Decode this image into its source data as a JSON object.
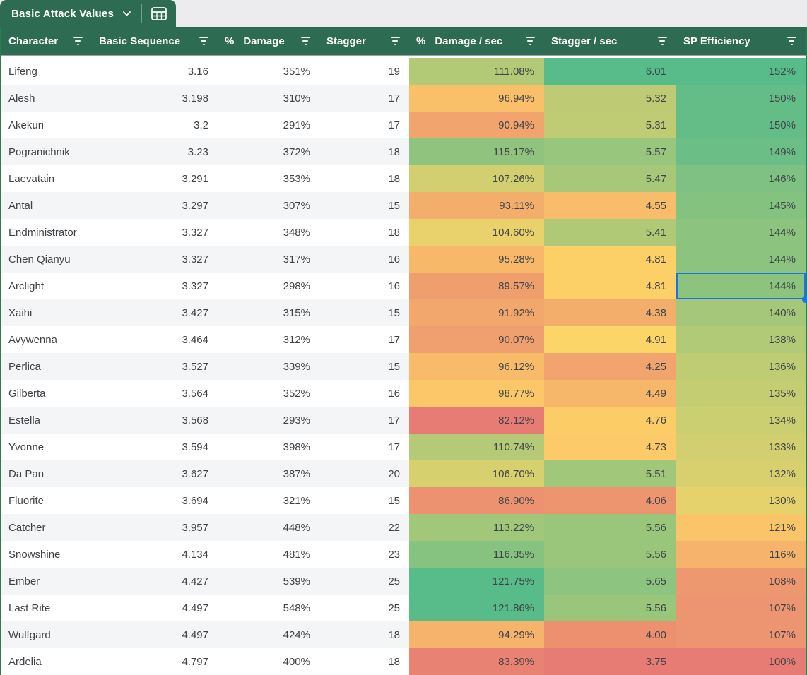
{
  "sheet_tab": {
    "label": "Basic Attack Values"
  },
  "icons": {
    "tab_chevron": "chevron-down",
    "tab_table": "table-grid",
    "column_filter": "filter-lines"
  },
  "theme": {
    "header_bg": "#2d6b53",
    "frame_border": "#2e7d4f",
    "row_alt_bg": "#f3f5f6",
    "selection_blue": "#1a73e8",
    "heat_min_color": "#e67c73",
    "heat_mid_color": "#ffd666",
    "heat_max_color": "#57bb8a"
  },
  "table": {
    "columns": [
      {
        "id": "character",
        "prefix": "",
        "label": "Character"
      },
      {
        "id": "basic_sequence",
        "prefix": "",
        "label": "Basic Sequence"
      },
      {
        "id": "damage_pct",
        "prefix": "%",
        "label": "Damage"
      },
      {
        "id": "stagger",
        "prefix": "",
        "label": "Stagger"
      },
      {
        "id": "damage_per_sec",
        "prefix": "%",
        "label": "Damage / sec"
      },
      {
        "id": "stagger_per_sec",
        "prefix": "",
        "label": "Stagger / sec"
      },
      {
        "id": "sp_efficiency",
        "prefix": "",
        "label": "SP Efficiency"
      }
    ],
    "heat_column_ids": [
      "damage_per_sec",
      "stagger_per_sec",
      "sp_efficiency"
    ],
    "rows": [
      {
        "character": "Lifeng",
        "basic_sequence": 3.16,
        "damage_pct": 351,
        "stagger": 19,
        "damage_per_sec": 111.08,
        "stagger_per_sec": 6.01,
        "sp_efficiency": 152
      },
      {
        "character": "Alesh",
        "basic_sequence": 3.198,
        "damage_pct": 310,
        "stagger": 17,
        "damage_per_sec": 96.94,
        "stagger_per_sec": 5.32,
        "sp_efficiency": 150
      },
      {
        "character": "Akekuri",
        "basic_sequence": 3.2,
        "damage_pct": 291,
        "stagger": 17,
        "damage_per_sec": 90.94,
        "stagger_per_sec": 5.31,
        "sp_efficiency": 150
      },
      {
        "character": "Pogranichnik",
        "basic_sequence": 3.23,
        "damage_pct": 372,
        "stagger": 18,
        "damage_per_sec": 115.17,
        "stagger_per_sec": 5.57,
        "sp_efficiency": 149
      },
      {
        "character": "Laevatain",
        "basic_sequence": 3.291,
        "damage_pct": 353,
        "stagger": 18,
        "damage_per_sec": 107.26,
        "stagger_per_sec": 5.47,
        "sp_efficiency": 146
      },
      {
        "character": "Antal",
        "basic_sequence": 3.297,
        "damage_pct": 307,
        "stagger": 15,
        "damage_per_sec": 93.11,
        "stagger_per_sec": 4.55,
        "sp_efficiency": 145
      },
      {
        "character": "Endministrator",
        "basic_sequence": 3.327,
        "damage_pct": 348,
        "stagger": 18,
        "damage_per_sec": 104.6,
        "stagger_per_sec": 5.41,
        "sp_efficiency": 144
      },
      {
        "character": "Chen Qianyu",
        "basic_sequence": 3.327,
        "damage_pct": 317,
        "stagger": 16,
        "damage_per_sec": 95.28,
        "stagger_per_sec": 4.81,
        "sp_efficiency": 144
      },
      {
        "character": "Arclight",
        "basic_sequence": 3.327,
        "damage_pct": 298,
        "stagger": 16,
        "damage_per_sec": 89.57,
        "stagger_per_sec": 4.81,
        "sp_efficiency": 144
      },
      {
        "character": "Xaihi",
        "basic_sequence": 3.427,
        "damage_pct": 315,
        "stagger": 15,
        "damage_per_sec": 91.92,
        "stagger_per_sec": 4.38,
        "sp_efficiency": 140
      },
      {
        "character": "Avywenna",
        "basic_sequence": 3.464,
        "damage_pct": 312,
        "stagger": 17,
        "damage_per_sec": 90.07,
        "stagger_per_sec": 4.91,
        "sp_efficiency": 138
      },
      {
        "character": "Perlica",
        "basic_sequence": 3.527,
        "damage_pct": 339,
        "stagger": 15,
        "damage_per_sec": 96.12,
        "stagger_per_sec": 4.25,
        "sp_efficiency": 136
      },
      {
        "character": "Gilberta",
        "basic_sequence": 3.564,
        "damage_pct": 352,
        "stagger": 16,
        "damage_per_sec": 98.77,
        "stagger_per_sec": 4.49,
        "sp_efficiency": 135
      },
      {
        "character": "Estella",
        "basic_sequence": 3.568,
        "damage_pct": 293,
        "stagger": 17,
        "damage_per_sec": 82.12,
        "stagger_per_sec": 4.76,
        "sp_efficiency": 134
      },
      {
        "character": "Yvonne",
        "basic_sequence": 3.594,
        "damage_pct": 398,
        "stagger": 17,
        "damage_per_sec": 110.74,
        "stagger_per_sec": 4.73,
        "sp_efficiency": 133
      },
      {
        "character": "Da Pan",
        "basic_sequence": 3.627,
        "damage_pct": 387,
        "stagger": 20,
        "damage_per_sec": 106.7,
        "stagger_per_sec": 5.51,
        "sp_efficiency": 132
      },
      {
        "character": "Fluorite",
        "basic_sequence": 3.694,
        "damage_pct": 321,
        "stagger": 15,
        "damage_per_sec": 86.9,
        "stagger_per_sec": 4.06,
        "sp_efficiency": 130
      },
      {
        "character": "Catcher",
        "basic_sequence": 3.957,
        "damage_pct": 448,
        "stagger": 22,
        "damage_per_sec": 113.22,
        "stagger_per_sec": 5.56,
        "sp_efficiency": 121
      },
      {
        "character": "Snowshine",
        "basic_sequence": 4.134,
        "damage_pct": 481,
        "stagger": 23,
        "damage_per_sec": 116.35,
        "stagger_per_sec": 5.56,
        "sp_efficiency": 116
      },
      {
        "character": "Ember",
        "basic_sequence": 4.427,
        "damage_pct": 539,
        "stagger": 25,
        "damage_per_sec": 121.75,
        "stagger_per_sec": 5.65,
        "sp_efficiency": 108
      },
      {
        "character": "Last Rite",
        "basic_sequence": 4.497,
        "damage_pct": 548,
        "stagger": 25,
        "damage_per_sec": 121.86,
        "stagger_per_sec": 5.56,
        "sp_efficiency": 107
      },
      {
        "character": "Wulfgard",
        "basic_sequence": 4.497,
        "damage_pct": 424,
        "stagger": 18,
        "damage_per_sec": 94.29,
        "stagger_per_sec": 4.0,
        "sp_efficiency": 107
      },
      {
        "character": "Ardelia",
        "basic_sequence": 4.797,
        "damage_pct": 400,
        "stagger": 18,
        "damage_per_sec": 83.39,
        "stagger_per_sec": 3.75,
        "sp_efficiency": 100
      }
    ],
    "selection": {
      "character": "Arclight",
      "column": "sp_efficiency"
    }
  }
}
